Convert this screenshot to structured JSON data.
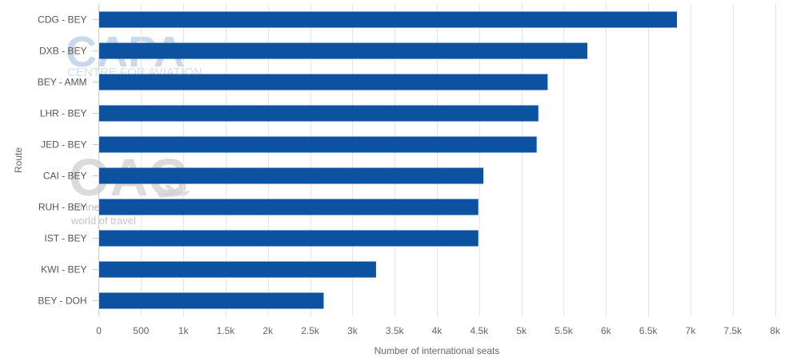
{
  "watermarks": {
    "capa_main": "CAPA",
    "capa_sub": "CENTRE FOR AVIATION",
    "oag_main": "OAG",
    "oag_line1": "conne",
    "oag_line2": "world of travel"
  },
  "colors": {
    "bar": "#0d52a1",
    "grid": "#e6e6e6",
    "axis_line": "#cccccc"
  },
  "chart_data": {
    "type": "bar",
    "orientation": "horizontal",
    "xlabel": "Number of international seats",
    "ylabel": "Route",
    "xlim": [
      0,
      8000
    ],
    "x_ticks": [
      0,
      500,
      1000,
      1500,
      2000,
      2500,
      3000,
      3500,
      4000,
      4500,
      5000,
      5500,
      6000,
      6500,
      7000,
      7500,
      8000
    ],
    "x_tick_labels": [
      "0",
      "500",
      "1k",
      "1.5k",
      "2k",
      "2.5k",
      "3k",
      "3.5k",
      "4k",
      "4.5k",
      "5k",
      "5.5k",
      "6k",
      "6.5k",
      "7k",
      "7.5k",
      "8k"
    ],
    "grid": true,
    "legend": "none",
    "categories": [
      "CDG - BEY",
      "DXB - BEY",
      "BEY - AMM",
      "LHR - BEY",
      "JED - BEY",
      "CAI - BEY",
      "RUH - BEY",
      "IST - BEY",
      "KWI - BEY",
      "BEY - DOH"
    ],
    "values": [
      6840,
      5780,
      5310,
      5200,
      5180,
      4550,
      4490,
      4490,
      3280,
      2660
    ]
  }
}
